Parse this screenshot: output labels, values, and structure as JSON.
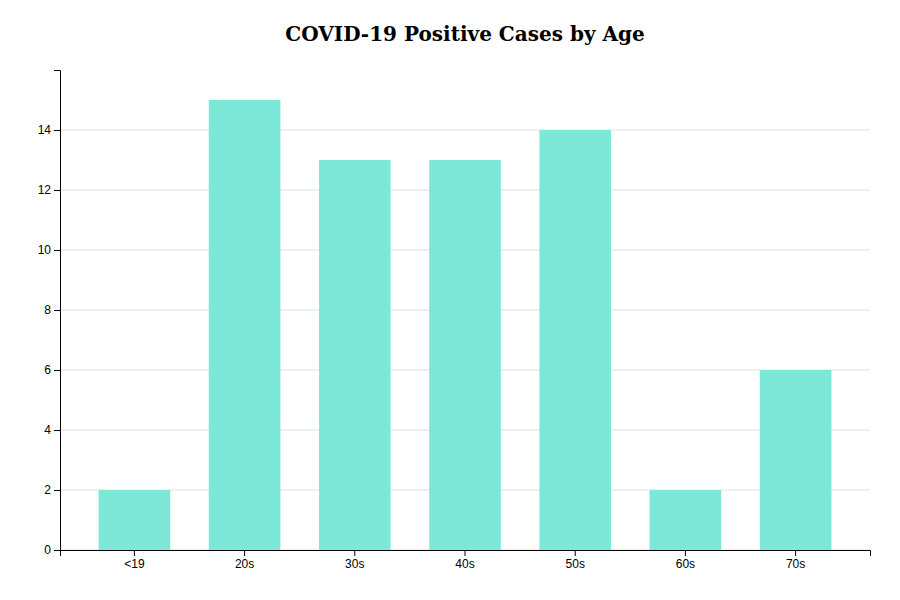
{
  "chart_data": {
    "type": "bar",
    "title": "COVID-19 Positive Cases by Age",
    "categories": [
      "<19",
      "20s",
      "30s",
      "40s",
      "50s",
      "60s",
      "70s"
    ],
    "values": [
      2,
      15,
      13,
      13,
      14,
      2,
      6
    ],
    "color": "#7de8d8",
    "ylim": [
      0,
      16
    ],
    "yticks": [
      0,
      2,
      4,
      6,
      8,
      10,
      12,
      14
    ],
    "grid": true
  }
}
